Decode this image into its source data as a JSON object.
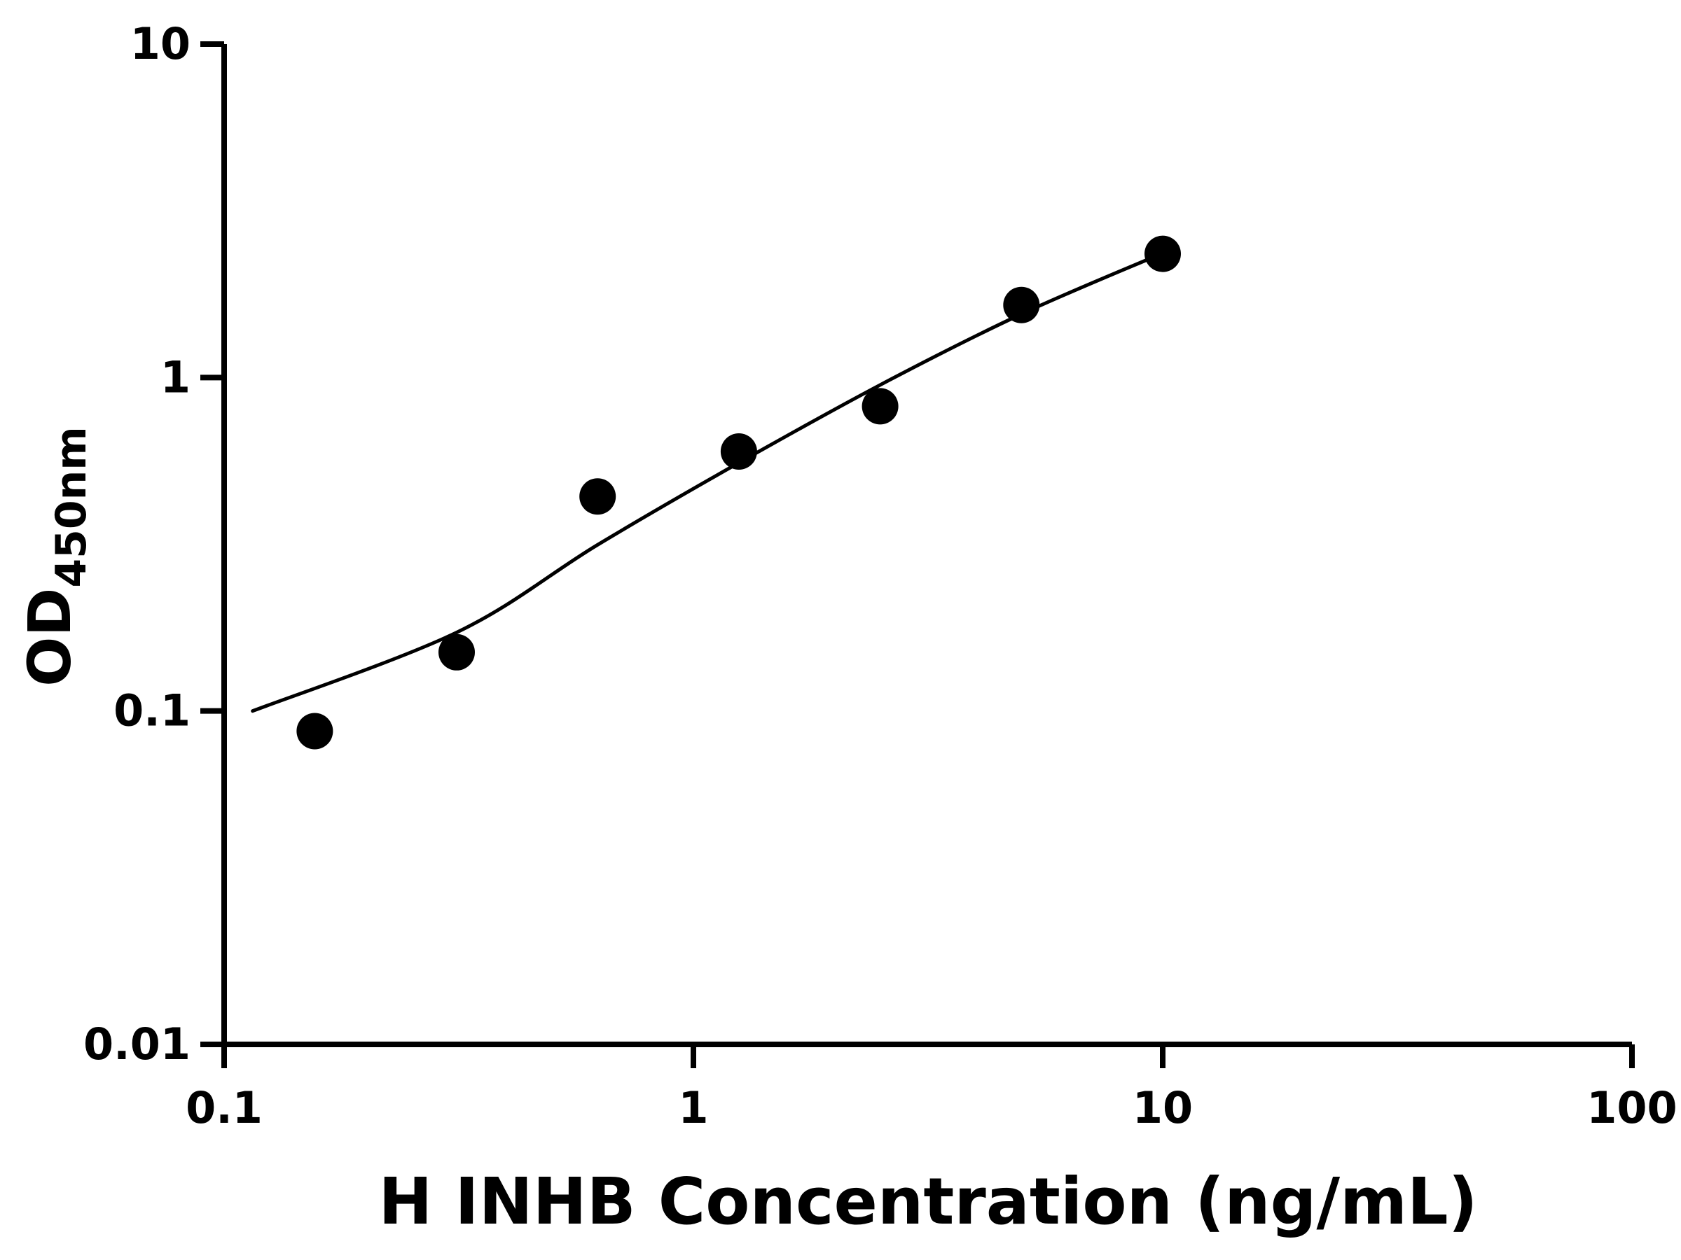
{
  "chart_data": {
    "type": "scatter",
    "title": "",
    "xlabel": "H INHB Concentration (ng/mL)",
    "ylabel": "OD450nm",
    "ylabel_main": "OD",
    "ylabel_sub": "450nm",
    "x_scale": "log",
    "y_scale": "log",
    "xlim": [
      0.1,
      100
    ],
    "ylim": [
      0.01,
      10
    ],
    "grid": false,
    "legend_position": "none",
    "background": "#ffffff",
    "axis_color": "#000000",
    "x_ticks": [
      {
        "value": 0.1,
        "label": "0.1"
      },
      {
        "value": 1,
        "label": "1"
      },
      {
        "value": 10,
        "label": "10"
      },
      {
        "value": 100,
        "label": "100"
      }
    ],
    "y_ticks": [
      {
        "value": 0.01,
        "label": "0.01"
      },
      {
        "value": 0.1,
        "label": "0.1"
      },
      {
        "value": 1,
        "label": "1"
      },
      {
        "value": 10,
        "label": "10"
      }
    ],
    "series": [
      {
        "name": "standard_points",
        "type": "scatter",
        "marker": "circle",
        "color": "#000000",
        "x": [
          0.156,
          0.313,
          0.625,
          1.25,
          2.5,
          5,
          10
        ],
        "y": [
          0.087,
          0.15,
          0.44,
          0.6,
          0.82,
          1.65,
          2.35
        ]
      },
      {
        "name": "fit_line",
        "type": "line",
        "color": "#000000",
        "x": [
          0.115,
          0.313,
          0.625,
          1.25,
          2.5,
          5,
          10
        ],
        "y": [
          0.1,
          0.172,
          0.315,
          0.555,
          0.95,
          1.55,
          2.36
        ]
      }
    ]
  }
}
